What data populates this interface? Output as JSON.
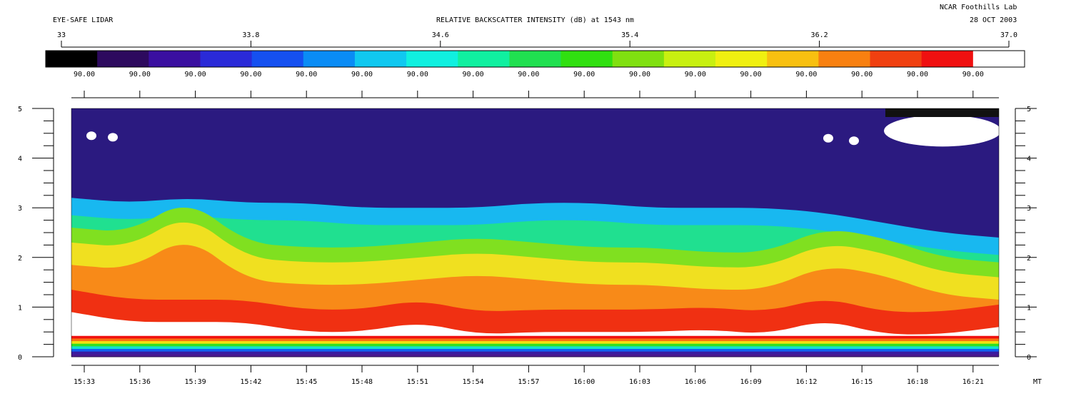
{
  "header": {
    "left_title": "EYE-SAFE LIDAR",
    "center_title": "RELATIVE BACKSCATTER INTENSITY (dB) at 1543 nm",
    "org": "NCAR Foothills Lab",
    "date": "28 OCT 2003"
  },
  "colorbar": {
    "tick_labels": [
      "33",
      "33.8",
      "34.6",
      "35.4",
      "36.2",
      "37.0"
    ],
    "range": [
      33,
      37
    ],
    "secondary_labels": [
      "90.00",
      "90.00",
      "90.00",
      "90.00",
      "90.00",
      "90.00",
      "90.00",
      "90.00",
      "90.00",
      "90.00",
      "90.00",
      "90.00",
      "90.00",
      "90.00",
      "90.00",
      "90.00",
      "90.00"
    ],
    "palette": [
      "#000000",
      "#2d0a5e",
      "#3a0fa0",
      "#2a2ad8",
      "#1550f0",
      "#0a8cf5",
      "#10c8f0",
      "#10f0e0",
      "#10f0a0",
      "#20e050",
      "#30e010",
      "#80e010",
      "#c8f010",
      "#f0f010",
      "#f8c010",
      "#f88010",
      "#f04010",
      "#f01010",
      "#ffffff"
    ]
  },
  "chart_data": {
    "type": "heatmap",
    "title": "RELATIVE BACKSCATTER INTENSITY (dB) at 1543 nm",
    "xlabel": "MT",
    "ylabel": "",
    "x_ticks": [
      "15:33",
      "15:36",
      "15:39",
      "15:42",
      "15:45",
      "15:48",
      "15:51",
      "15:54",
      "15:57",
      "16:00",
      "16:03",
      "16:06",
      "16:09",
      "16:12",
      "16:15",
      "16:18",
      "16:21"
    ],
    "y_ticks": [
      0,
      1,
      2,
      3,
      4,
      5
    ],
    "ylim": [
      0,
      5
    ],
    "x_unit_label": "MT",
    "aerosol_layer_top_km": [
      2.3,
      2.2,
      2.9,
      2.0,
      1.9,
      1.9,
      2.0,
      2.1,
      2.0,
      1.9,
      1.9,
      1.8,
      1.8,
      2.3,
      2.1,
      1.7,
      1.6
    ],
    "clear_air_top_km": [
      3.2,
      3.1,
      3.2,
      3.1,
      3.1,
      3.0,
      3.0,
      3.0,
      3.1,
      3.1,
      3.0,
      3.0,
      3.0,
      2.9,
      2.7,
      2.5,
      2.4
    ],
    "lowest_signal_km": [
      0.9,
      0.7,
      0.7,
      0.7,
      0.5,
      0.5,
      0.7,
      0.45,
      0.5,
      0.5,
      0.5,
      0.55,
      0.45,
      0.75,
      0.45,
      0.45,
      0.6
    ]
  }
}
